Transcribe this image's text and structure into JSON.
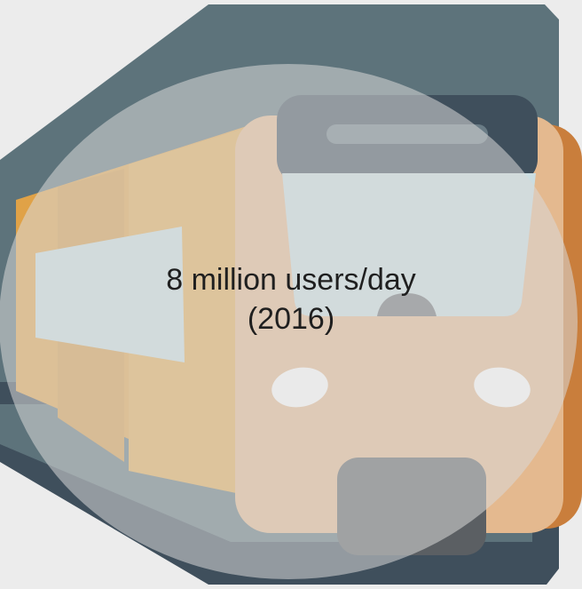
{
  "caption": {
    "line1": "8 million users/day",
    "line2": "(2016)"
  },
  "icon": "train-front-icon",
  "colors": {
    "background": "#ececec",
    "rail_dark": "#3f4f5c",
    "rail_mid": "#5d737b",
    "train_orange": "#e0a247",
    "train_body_dark": "#c98e49",
    "window": "#cbdde1",
    "overlay_circle": "#d9d9d9"
  }
}
